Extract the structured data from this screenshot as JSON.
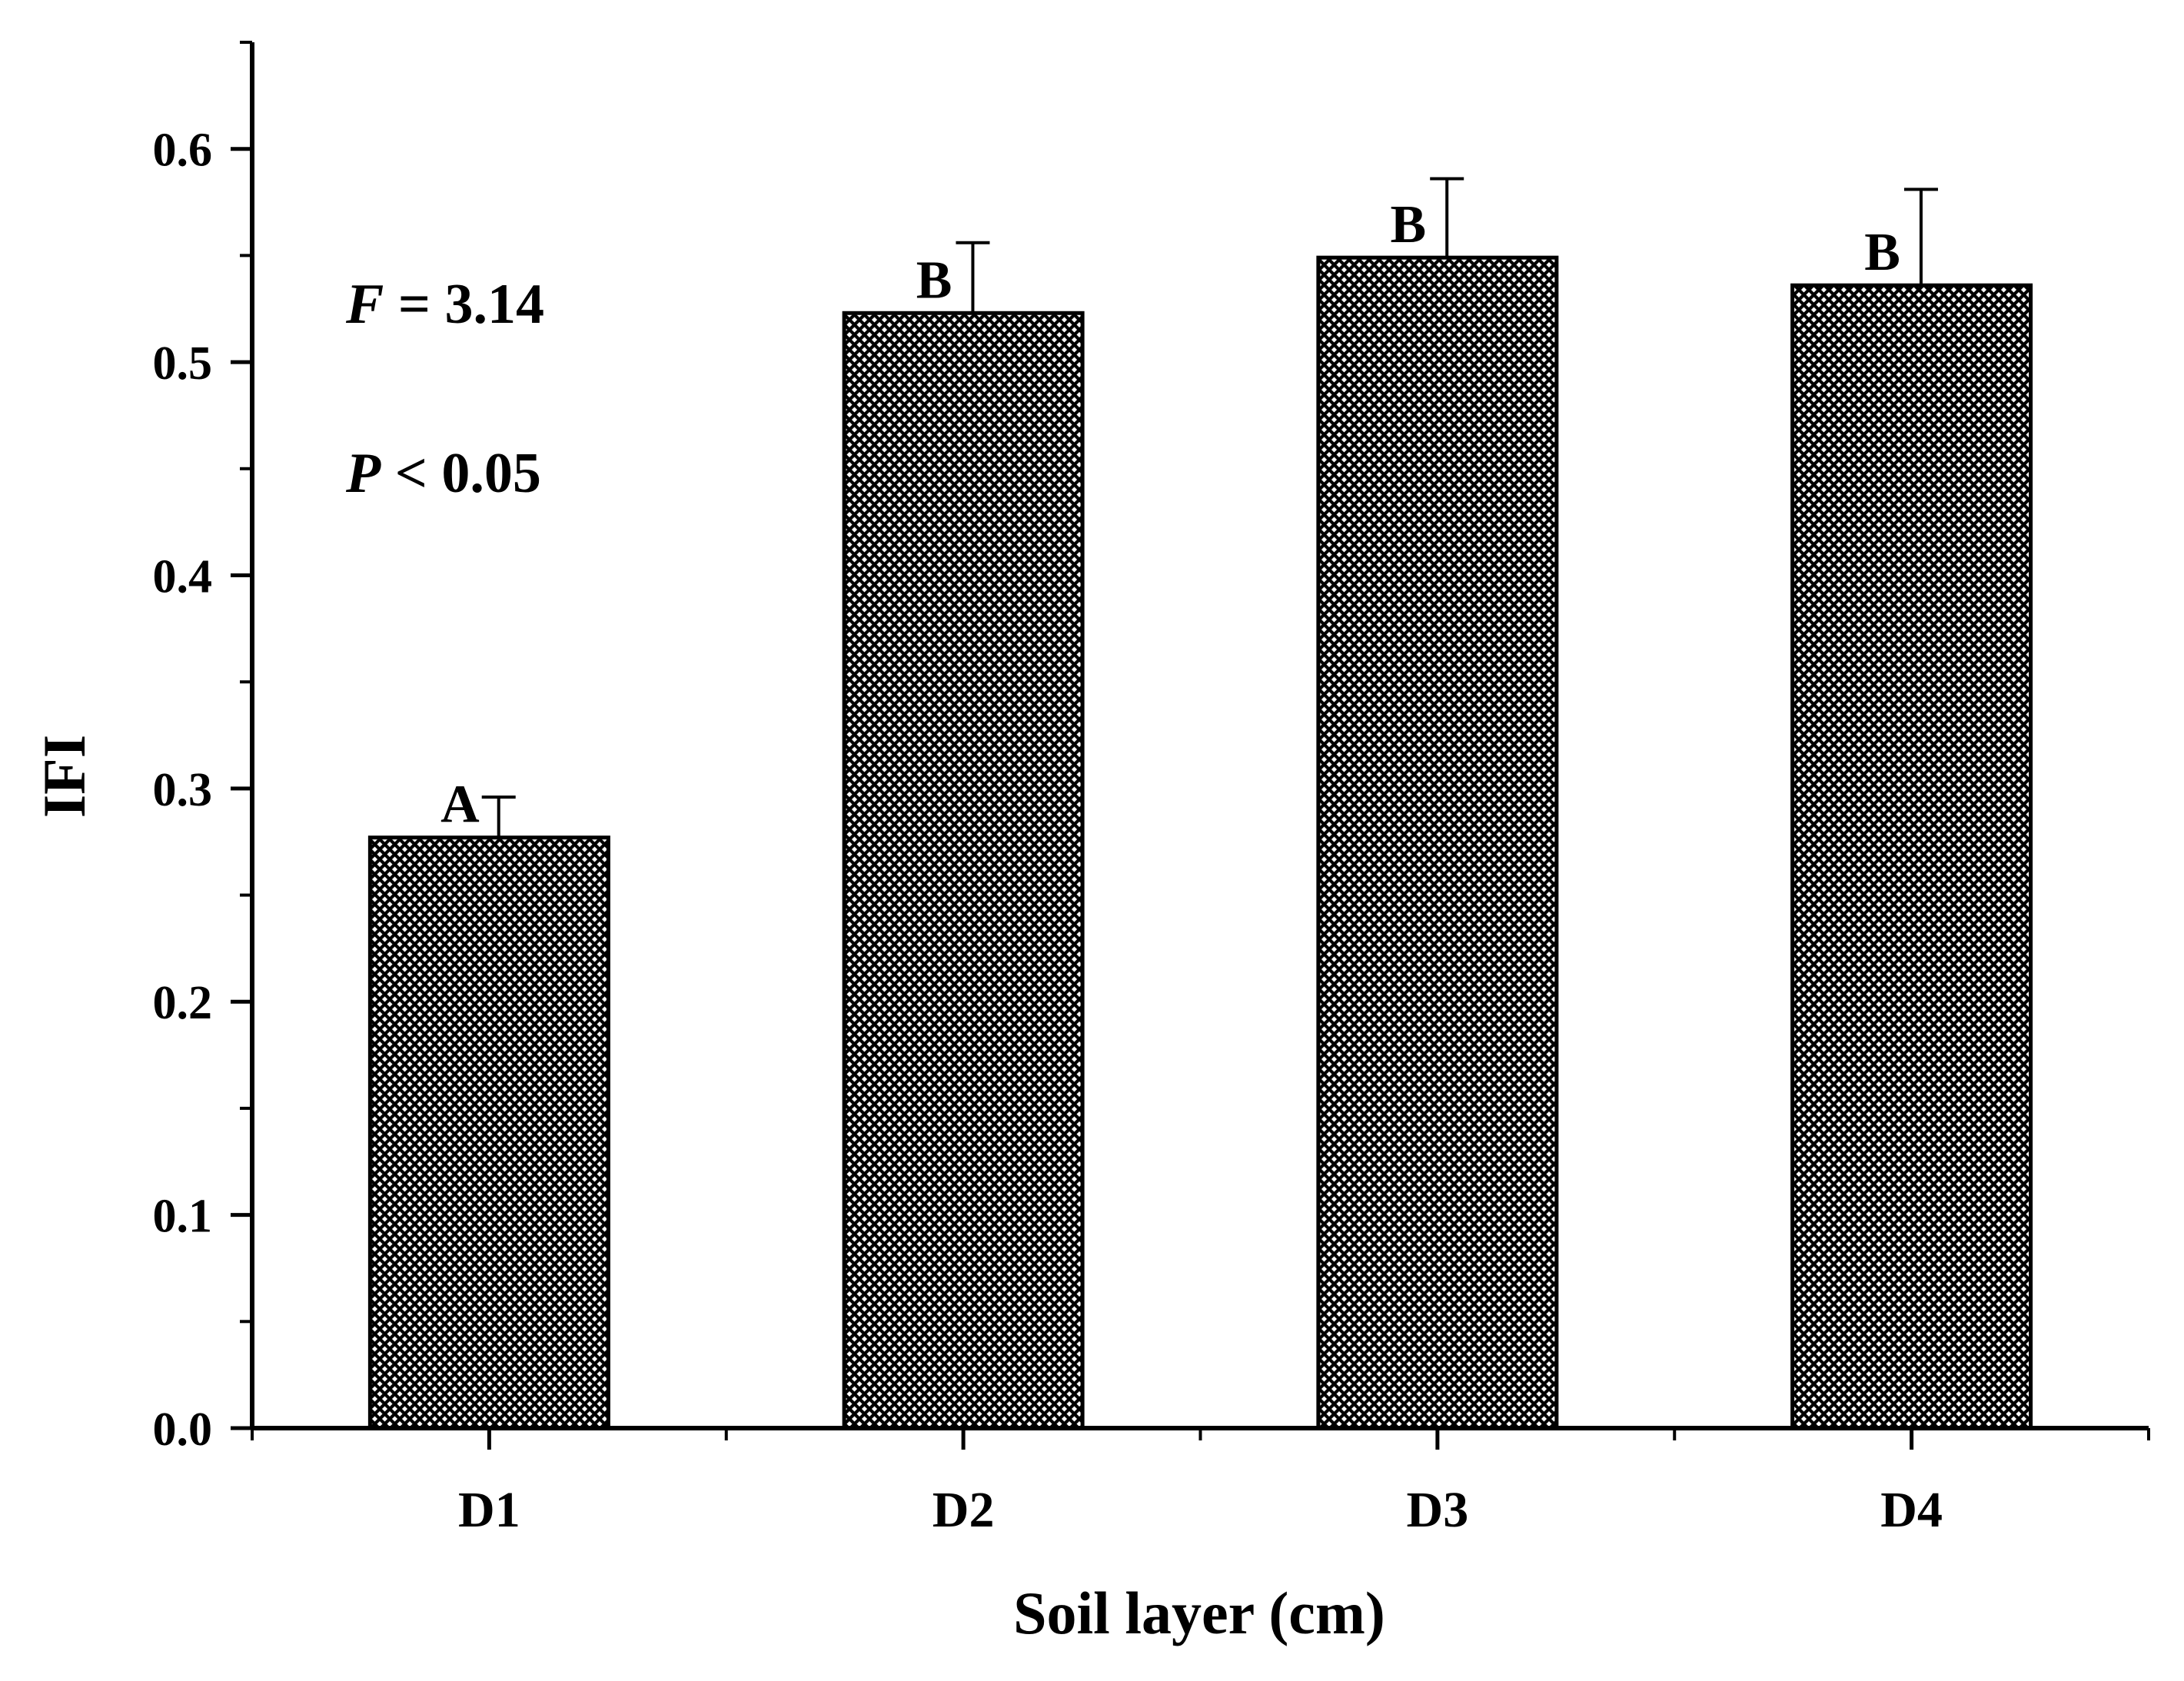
{
  "chart_data": {
    "type": "bar",
    "xlabel": "Soil layer (cm)",
    "ylabel": "IFI",
    "categories": [
      "D1",
      "D2",
      "D3",
      "D4"
    ],
    "values": [
      0.277,
      0.523,
      0.549,
      0.536
    ],
    "errors": [
      0.019,
      0.033,
      0.037,
      0.045
    ],
    "significance_letters": [
      "A",
      "B",
      "B",
      "B"
    ],
    "ylim": [
      0,
      0.65
    ],
    "yticks": [
      "0.0",
      "0.1",
      "0.2",
      "0.3",
      "0.4",
      "0.5",
      "0.6"
    ],
    "grid": false,
    "fill_pattern": "crosshatch",
    "bar_color": "#000000",
    "annotations": {
      "f_symbol": "F",
      "f_rest": " = 3.14",
      "p_symbol": "P",
      "p_rest": " < 0.05"
    }
  }
}
